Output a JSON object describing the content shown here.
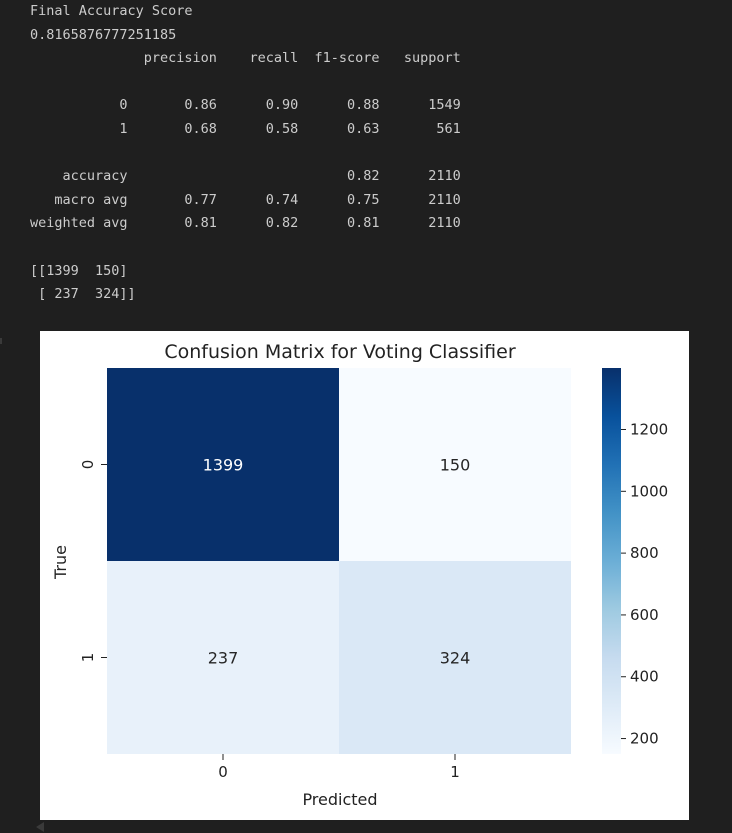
{
  "output": {
    "lines": [
      "Final Accuracy Score",
      "0.8165876777251185",
      "              precision    recall  f1-score   support",
      "",
      "           0       0.86      0.90      0.88      1549",
      "           1       0.68      0.58      0.63       561",
      "",
      "    accuracy                           0.82      2110",
      "   macro avg       0.77      0.74      0.75      2110",
      "weighted avg       0.81      0.82      0.81      2110",
      "",
      "[[1399  150]",
      " [ 237  324]]"
    ]
  },
  "chart_data": {
    "type": "heatmap",
    "title": "Confusion Matrix for Voting Classifier",
    "xlabel": "Predicted",
    "ylabel": "True",
    "x_categories": [
      "0",
      "1"
    ],
    "y_categories": [
      "0",
      "1"
    ],
    "values": [
      [
        1399,
        150
      ],
      [
        237,
        324
      ]
    ],
    "colormap": "Blues",
    "vmin": 150,
    "vmax": 1399,
    "colorbar_ticks": [
      200,
      400,
      600,
      800,
      1000,
      1200
    ],
    "colorbar_tick_labels": [
      "200",
      "400",
      "600",
      "800",
      "1000",
      "1200"
    ],
    "cell_colors": [
      "#08306b",
      "#f7fbff",
      "#e8f1fa",
      "#dae8f6"
    ],
    "annotation_colors": [
      "#ffffff",
      "#262626",
      "#262626",
      "#262626"
    ],
    "colorbar_stops": [
      "#f7fbff",
      "#deebf7",
      "#c6dbef",
      "#9ecae1",
      "#6baed6",
      "#4292c6",
      "#2171b5",
      "#08519c",
      "#08306b"
    ],
    "grid": false
  }
}
